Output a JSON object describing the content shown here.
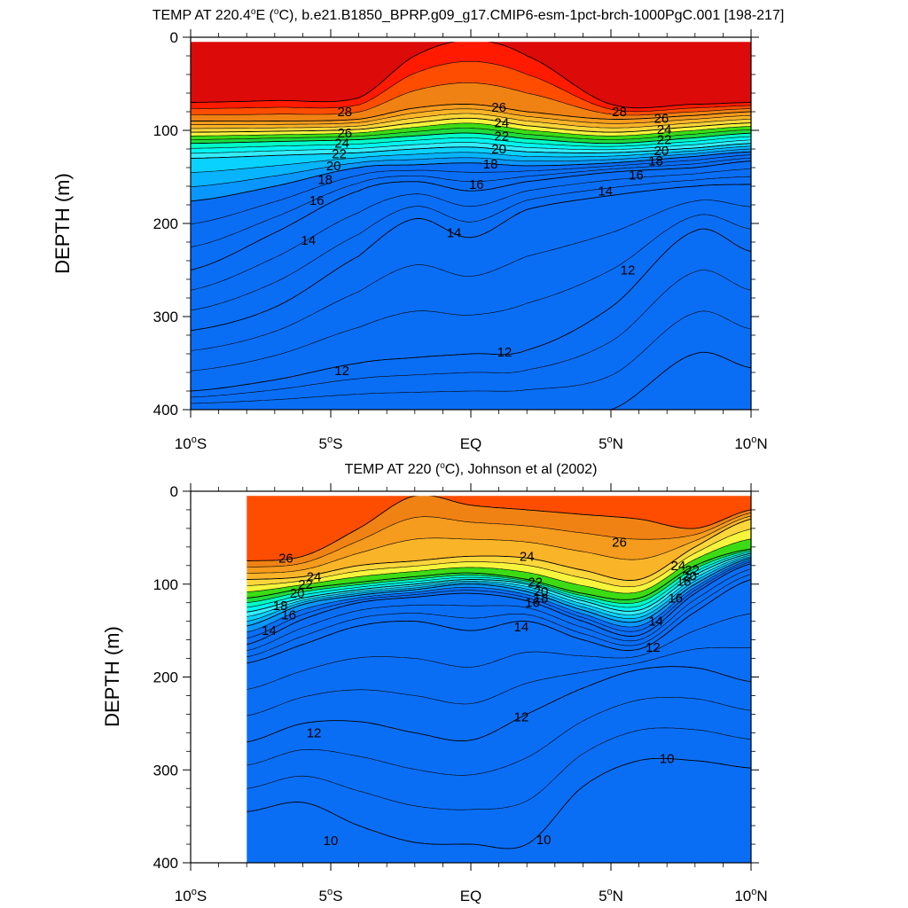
{
  "chart_data": [
    {
      "type": "contour",
      "title_prefix": "TEMP AT 220.4",
      "title_sup": "o",
      "title_suffix": "E (",
      "title_unit_sup": "o",
      "title_end": "C), b.e21.B1850_BPRP.g09_g17.CMIP6-esm-1pct-brch-1000PgC.001 [198-217]",
      "ylabel": "DEPTH (m)",
      "xlim": [
        -10,
        10
      ],
      "ylim": [
        400,
        0
      ],
      "x_ticks": [
        {
          "value": -10,
          "num": "10",
          "hemi": "S"
        },
        {
          "value": -5,
          "num": "5",
          "hemi": "S"
        },
        {
          "value": 0,
          "num": "EQ",
          "hemi": ""
        },
        {
          "value": 5,
          "num": "5",
          "hemi": "N"
        },
        {
          "value": 10,
          "num": "10",
          "hemi": "N"
        }
      ],
      "y_ticks": [
        0,
        100,
        200,
        300,
        400
      ],
      "data_x_range": [
        -10,
        10
      ],
      "control_lat": [
        -10,
        -7,
        -4,
        -2,
        0,
        2,
        5,
        8,
        10
      ],
      "contours": [
        {
          "level": 28,
          "depth": [
            70,
            68,
            65,
            20,
            0,
            20,
            72,
            72,
            70
          ]
        },
        {
          "level": 26,
          "depth": [
            90,
            90,
            88,
            76,
            72,
            80,
            88,
            84,
            80
          ]
        },
        {
          "level": 24,
          "depth": [
            102,
            101,
            99,
            92,
            87,
            95,
            102,
            96,
            92
          ]
        },
        {
          "level": 22,
          "depth": [
            114,
            112,
            110,
            106,
            103,
            109,
            114,
            108,
            103
          ]
        },
        {
          "level": 20,
          "depth": [
            130,
            127,
            124,
            120,
            118,
            123,
            124,
            119,
            114
          ]
        },
        {
          "level": 18,
          "depth": [
            176,
            160,
            140,
            137,
            135,
            138,
            135,
            128,
            123
          ]
        },
        {
          "level": 16,
          "depth": [
            250,
            210,
            165,
            155,
            165,
            155,
            145,
            140,
            133
          ]
        },
        {
          "level": 14,
          "depth": [
            315,
            290,
            235,
            195,
            215,
            185,
            170,
            160,
            158
          ]
        },
        {
          "level": 12,
          "depth": [
            380,
            368,
            350,
            344,
            340,
            336,
            290,
            208,
            230
          ]
        },
        {
          "level": 10,
          "depth": [
            400,
            400,
            400,
            400,
            400,
            400,
            400,
            340,
            355
          ]
        }
      ],
      "line_labels": [
        {
          "text": "28",
          "x": -4.5,
          "y": 80
        },
        {
          "text": "26",
          "x": -4.5,
          "y": 103
        },
        {
          "text": "24",
          "x": -4.6,
          "y": 114
        },
        {
          "text": "22",
          "x": -4.7,
          "y": 125
        },
        {
          "text": "20",
          "x": -4.9,
          "y": 138
        },
        {
          "text": "18",
          "x": -5.2,
          "y": 153
        },
        {
          "text": "16",
          "x": -5.5,
          "y": 175
        },
        {
          "text": "14",
          "x": -5.8,
          "y": 218
        },
        {
          "text": "12",
          "x": -4.6,
          "y": 358
        },
        {
          "text": "26",
          "x": 1.0,
          "y": 75
        },
        {
          "text": "24",
          "x": 1.1,
          "y": 92
        },
        {
          "text": "22",
          "x": 1.1,
          "y": 106
        },
        {
          "text": "20",
          "x": 1.0,
          "y": 120
        },
        {
          "text": "18",
          "x": 0.7,
          "y": 136
        },
        {
          "text": "16",
          "x": 0.2,
          "y": 158
        },
        {
          "text": "14",
          "x": -0.6,
          "y": 210
        },
        {
          "text": "12",
          "x": 1.2,
          "y": 338
        },
        {
          "text": "28",
          "x": 5.3,
          "y": 80
        },
        {
          "text": "26",
          "x": 6.8,
          "y": 87
        },
        {
          "text": "24",
          "x": 6.9,
          "y": 99
        },
        {
          "text": "22",
          "x": 6.9,
          "y": 110
        },
        {
          "text": "20",
          "x": 6.8,
          "y": 122
        },
        {
          "text": "18",
          "x": 6.6,
          "y": 133
        },
        {
          "text": "16",
          "x": 5.9,
          "y": 148
        },
        {
          "text": "14",
          "x": 4.8,
          "y": 165
        },
        {
          "text": "12",
          "x": 5.6,
          "y": 250
        }
      ]
    },
    {
      "type": "contour",
      "title_prefix": "TEMP AT 220 (",
      "title_sup": "o",
      "title_suffix": "C), Johnson et al (2002)",
      "title_unit_sup": "",
      "title_end": "",
      "ylabel": "DEPTH (m)",
      "xlim": [
        -10,
        10
      ],
      "ylim": [
        400,
        0
      ],
      "x_ticks": [
        {
          "value": -10,
          "num": "10",
          "hemi": "S"
        },
        {
          "value": -5,
          "num": "5",
          "hemi": "S"
        },
        {
          "value": 0,
          "num": "EQ",
          "hemi": ""
        },
        {
          "value": 5,
          "num": "5",
          "hemi": "N"
        },
        {
          "value": 10,
          "num": "10",
          "hemi": "N"
        }
      ],
      "y_ticks": [
        0,
        100,
        200,
        300,
        400
      ],
      "data_x_range": [
        -8,
        10
      ],
      "control_lat": [
        -8,
        -6,
        -4,
        -2,
        0,
        2,
        4,
        6,
        8,
        10
      ],
      "contours": [
        {
          "level": 26,
          "depth": [
            75,
            70,
            40,
            5,
            15,
            20,
            25,
            30,
            40,
            20
          ]
        },
        {
          "level": 24,
          "depth": [
            95,
            92,
            80,
            75,
            70,
            72,
            85,
            95,
            60,
            30
          ]
        },
        {
          "level": 22,
          "depth": [
            115,
            105,
            98,
            92,
            88,
            95,
            110,
            115,
            80,
            62
          ]
        },
        {
          "level": 20,
          "depth": [
            130,
            115,
            106,
            100,
            95,
            100,
            118,
            128,
            90,
            67
          ]
        },
        {
          "level": 18,
          "depth": [
            145,
            122,
            112,
            106,
            100,
            108,
            128,
            140,
            100,
            72
          ]
        },
        {
          "level": 16,
          "depth": [
            165,
            138,
            120,
            114,
            110,
            118,
            140,
            155,
            110,
            78
          ]
        },
        {
          "level": 14,
          "depth": [
            185,
            165,
            145,
            140,
            150,
            140,
            160,
            170,
            130,
            95
          ]
        },
        {
          "level": 12,
          "depth": [
            270,
            250,
            248,
            260,
            268,
            240,
            212,
            192,
            190,
            205
          ]
        },
        {
          "level": 10,
          "depth": [
            345,
            335,
            360,
            378,
            380,
            380,
            318,
            290,
            290,
            298
          ]
        }
      ],
      "line_labels": [
        {
          "text": "26",
          "x": -6.6,
          "y": 72
        },
        {
          "text": "24",
          "x": -5.6,
          "y": 92
        },
        {
          "text": "22",
          "x": -5.9,
          "y": 100
        },
        {
          "text": "20",
          "x": -6.2,
          "y": 110
        },
        {
          "text": "18",
          "x": -6.8,
          "y": 123
        },
        {
          "text": "16",
          "x": -6.5,
          "y": 133
        },
        {
          "text": "14",
          "x": -7.2,
          "y": 150
        },
        {
          "text": "12",
          "x": -5.6,
          "y": 260
        },
        {
          "text": "10",
          "x": -5.0,
          "y": 376
        },
        {
          "text": "24",
          "x": 2.0,
          "y": 70
        },
        {
          "text": "22",
          "x": 2.3,
          "y": 98
        },
        {
          "text": "20",
          "x": 2.5,
          "y": 108
        },
        {
          "text": "18",
          "x": 2.5,
          "y": 115
        },
        {
          "text": "16",
          "x": 2.2,
          "y": 120
        },
        {
          "text": "14",
          "x": 1.8,
          "y": 146
        },
        {
          "text": "12",
          "x": 1.8,
          "y": 243
        },
        {
          "text": "10",
          "x": 2.6,
          "y": 375
        },
        {
          "text": "26",
          "x": 5.3,
          "y": 55
        },
        {
          "text": "24",
          "x": 7.4,
          "y": 80
        },
        {
          "text": "22",
          "x": 7.9,
          "y": 85
        },
        {
          "text": "20",
          "x": 7.8,
          "y": 91
        },
        {
          "text": "18",
          "x": 7.6,
          "y": 97
        },
        {
          "text": "16",
          "x": 7.3,
          "y": 115
        },
        {
          "text": "14",
          "x": 6.6,
          "y": 140
        },
        {
          "text": "12",
          "x": 6.5,
          "y": 168
        },
        {
          "text": "10",
          "x": 7.0,
          "y": 288
        }
      ]
    }
  ],
  "colors": {
    "above_28": "#dd0a0a",
    "26_28": "#ff1a00",
    "24_26": "#ff4d00",
    "22_24": "#f08214",
    "20_22": "#f59b1e",
    "18_20": "#fab428",
    "16_18": "#fcd63a",
    "14_16": "#f6f43c",
    "12_14": "#3cdc14",
    "10_12": "#1edc3c",
    "cyan_a": "#00ffc8",
    "cyan_b": "#00f5f0",
    "cyan_c": "#33eeff",
    "blue_a": "#0ad2ff",
    "blue_b": "#08b4ff",
    "blue_c": "#0a96ff",
    "blue_d": "#0a6ef5",
    "line": "#000000"
  }
}
